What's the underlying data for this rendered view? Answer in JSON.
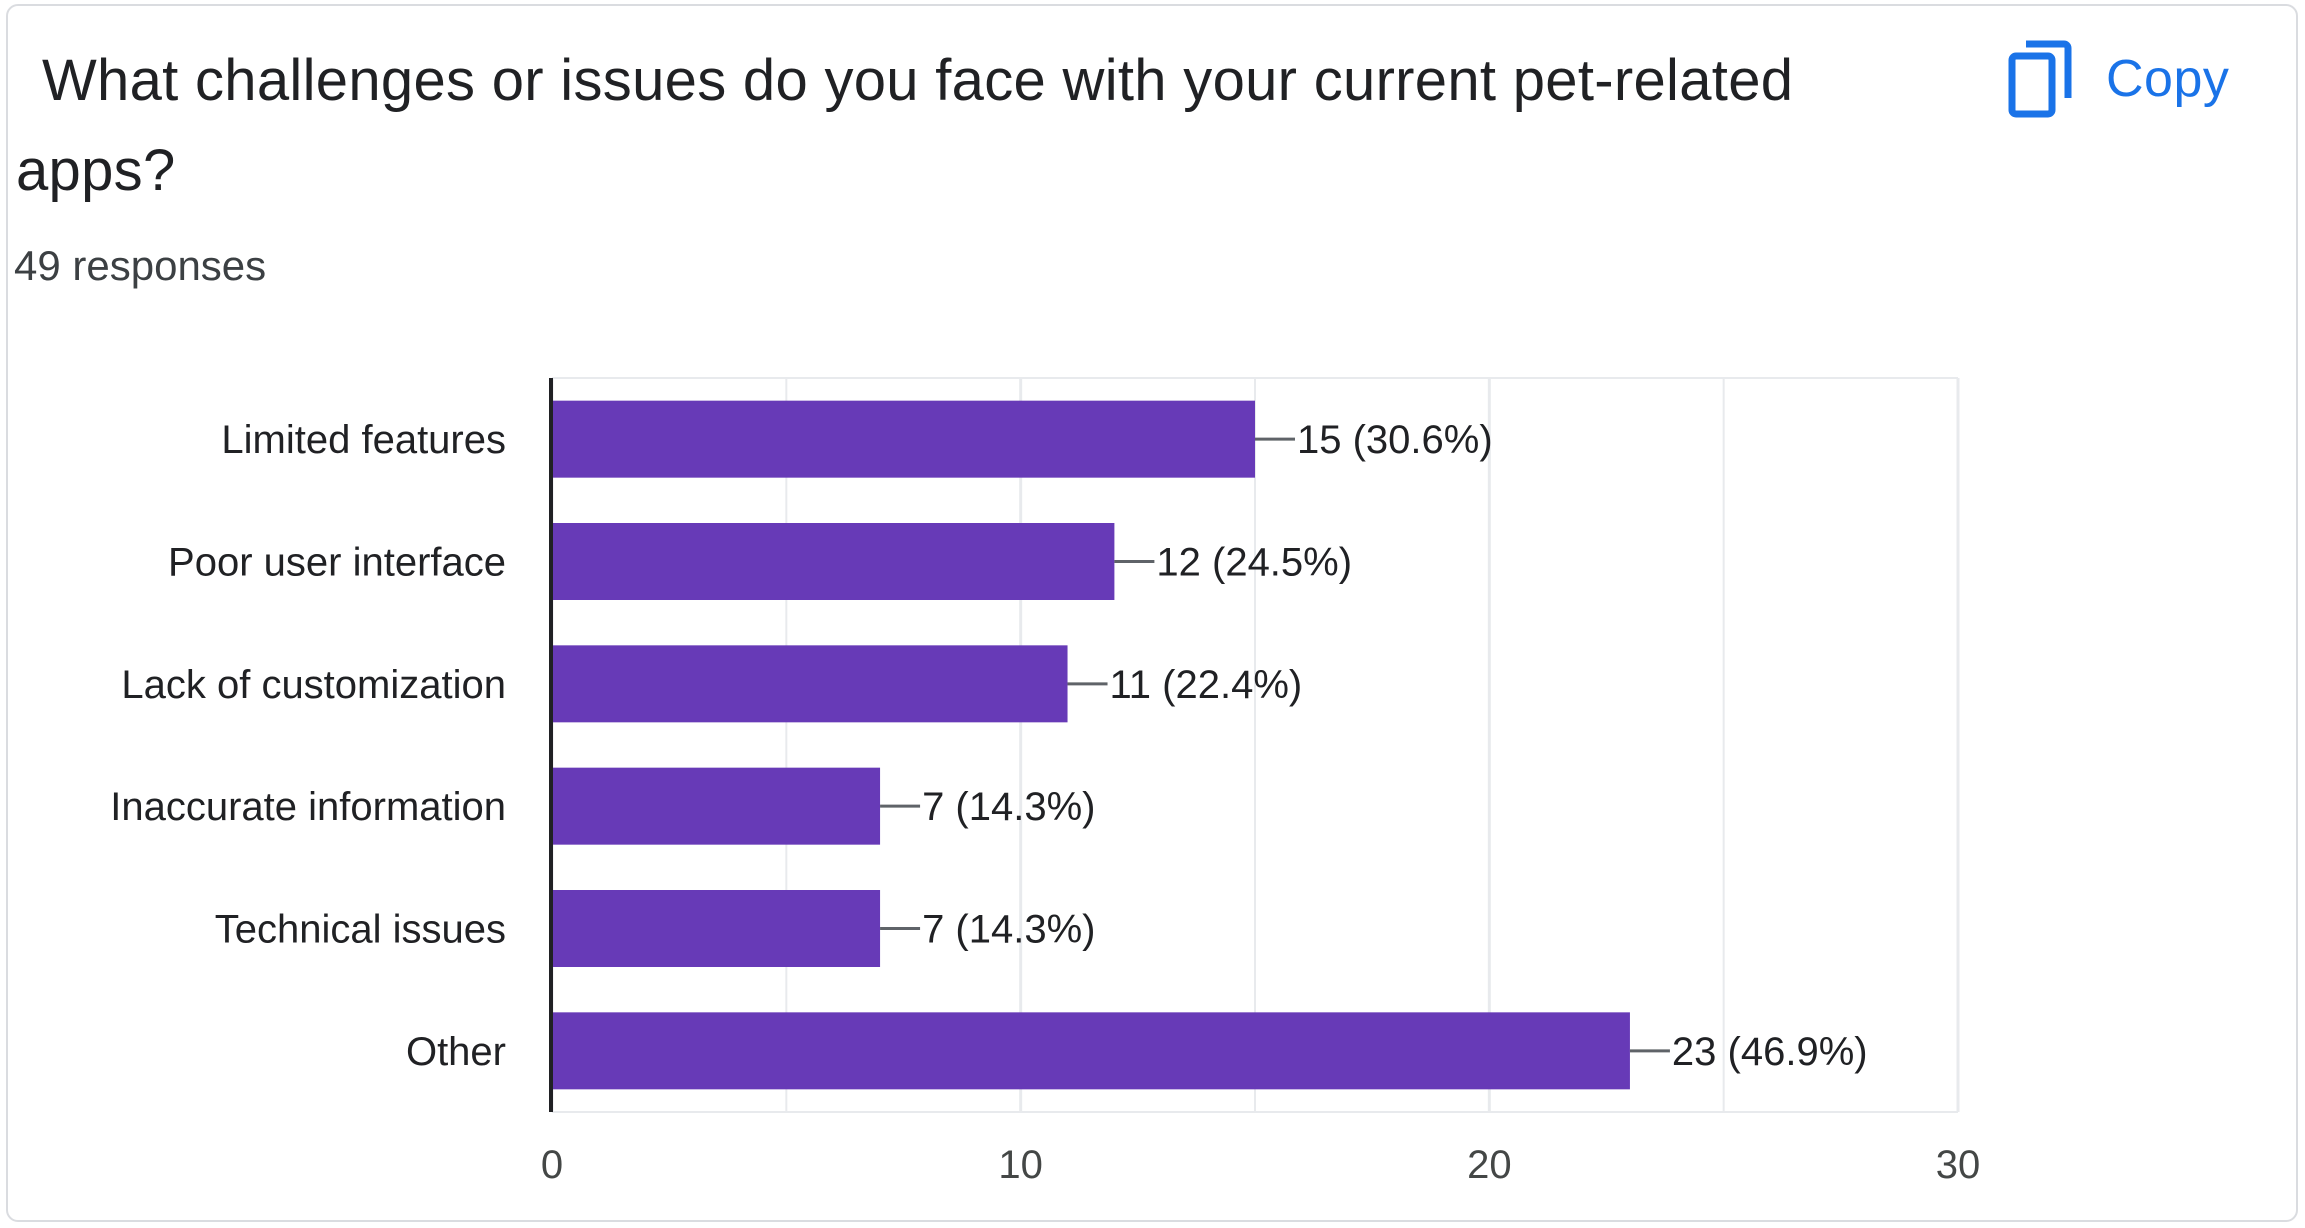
{
  "question": {
    "title": "What challenges or issues do you face with your current pet-related apps?",
    "responses_label": "49 responses"
  },
  "toolbar": {
    "copy_label": "Copy",
    "copy_icon": "copy-icon"
  },
  "colors": {
    "bar": "#673ab7",
    "accent": "#1a73e8",
    "grid": "#e8eaed",
    "axis": "#202124"
  },
  "chart_data": {
    "type": "bar",
    "orientation": "horizontal",
    "categories": [
      "Limited features",
      "Poor user interface",
      "Lack of customization",
      "Inaccurate information",
      "Technical issues",
      "Other"
    ],
    "values": [
      15,
      12,
      11,
      7,
      7,
      23
    ],
    "data_labels": [
      "15 (30.6%)",
      "12 (24.5%)",
      "11 (22.4%)",
      "7 (14.3%)",
      "7 (14.3%)",
      "23 (46.9%)"
    ],
    "xlim": [
      0,
      30
    ],
    "xticks": [
      "0",
      "10",
      "20",
      "30"
    ],
    "grid": true,
    "legend": "none"
  }
}
